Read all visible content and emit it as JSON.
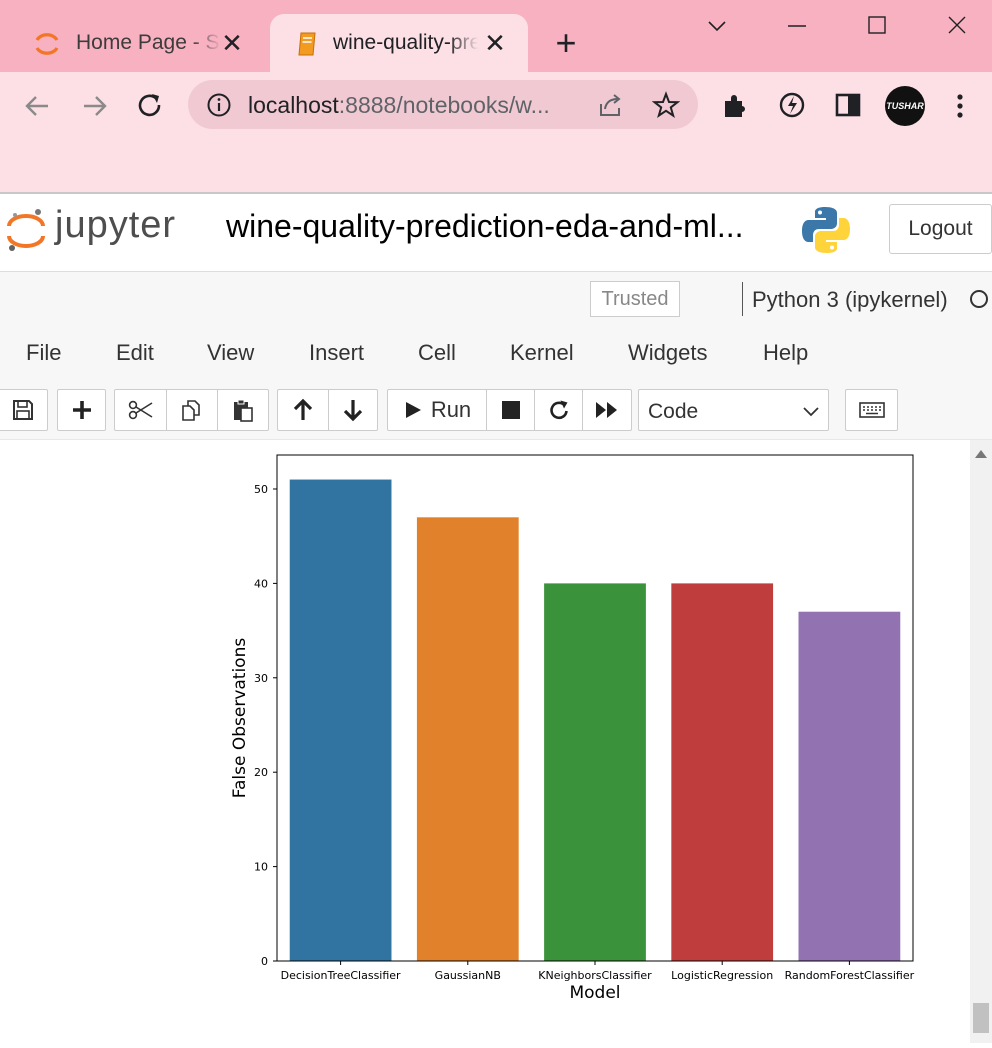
{
  "browser": {
    "tabs": [
      {
        "title": "Home Page - Select or create a notebook",
        "active": false
      },
      {
        "title": "wine-quality-prediction-eda-and-ml",
        "active": true
      }
    ],
    "close_glyph": "✕",
    "new_tab_glyph": "+",
    "url_host": "localhost",
    "url_rest": ":8888/notebooks/w...",
    "profile_label": "TUSHAR"
  },
  "jupyter": {
    "logo_text": "jupyter",
    "notebook_title": "wine-quality-prediction-eda-and-ml...",
    "logout_label": "Logout",
    "trusted_label": "Trusted",
    "kernel_name": "Python 3 (ipykernel)",
    "menu": [
      "File",
      "Edit",
      "View",
      "Insert",
      "Cell",
      "Kernel",
      "Widgets",
      "Help"
    ],
    "run_label": "Run",
    "cell_type": "Code"
  },
  "colors": {
    "tabstrip": "#f8b1c0",
    "toolbar": "#fce0e6",
    "jupyter_orange": "#f37626"
  },
  "chart_data": {
    "type": "bar",
    "categories": [
      "DecisionTreeClassifier",
      "GaussianNB",
      "KNeighborsClassifier",
      "LogisticRegression",
      "RandomForestClassifier"
    ],
    "values": [
      51,
      47,
      40,
      40,
      37
    ],
    "colors": [
      "#3274a1",
      "#e1812c",
      "#3a923a",
      "#c03d3e",
      "#9372b2"
    ],
    "xlabel": "Model",
    "ylabel": "False Observations",
    "ylim": [
      0,
      53.6
    ],
    "yticks": [
      0,
      10,
      20,
      30,
      40,
      50
    ],
    "grid": false
  }
}
